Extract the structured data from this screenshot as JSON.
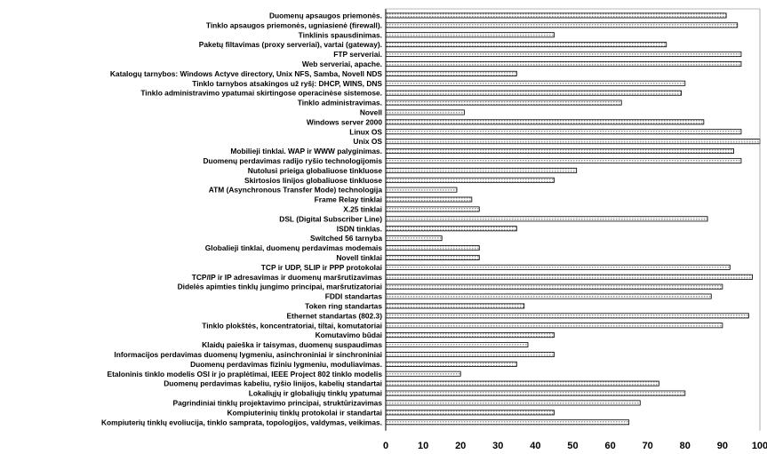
{
  "colors": {
    "bar_fill": "#d8d8d8",
    "bar_stroke": "#000000",
    "axis": "#000000",
    "text": "#000000"
  },
  "chart_data": {
    "type": "bar",
    "orientation": "horizontal",
    "title": "",
    "xlabel": "",
    "ylabel": "",
    "xlim": [
      0,
      100
    ],
    "xticks": [
      0,
      10,
      20,
      30,
      40,
      50,
      60,
      70,
      80,
      90,
      100
    ],
    "grid": false,
    "legend": "none",
    "categories": [
      "Duomenų apsaugos priemonės.",
      "Tinklo apsaugos priemonės, ugniasienė (firewall).",
      "Tinklinis spausdinimas.",
      "Paketų filtavimas (proxy serveriai), vartai (gateway).",
      "FTP serveriai.",
      "Web serveriai, apache.",
      "Katalogų tarnybos: Windows Actyve directory, Unix NFS, Samba, Novell NDS",
      "Tinklo tarnybos atsakingos už ryšį: DHCP, WINS, DNS",
      "Tinklo administravimo ypatumai skirtingose operacinėse sistemose.",
      "Tinklo administravimas.",
      "Novell",
      "Windows server 2000",
      "Linux OS",
      "Unix OS",
      "Mobilieji tinklai. WAP ir WWW palyginimas.",
      "Duomenų perdavimas radijo ryšio technologijomis",
      "Nutolusi prieiga globaliuose tinkluose",
      "Skirtosios linijos globaliuose tinkluose",
      "ATM (Asynchronous Transfer Mode) technologija",
      "Frame Relay tinklai",
      "X.25 tinklai",
      "DSL (Digital Subscriber Line)",
      "ISDN tinklas.",
      "Switched 56 tarnyba",
      "Globalieji tinklai, duomenų perdavimas modemais",
      "Novell tinklai",
      "TCP ir UDP, SLIP ir PPP protokolai",
      "TCP/IP ir IP adresavimas ir duomenų maršrutizavimas",
      "Didelės apimties tinklų jungimo principai, maršrutizatoriai",
      "FDDI standartas",
      "Token ring standartas",
      "Ethernet standartas (802.3)",
      "Tinklo plokštės, koncentratoriai, tiltai, komutatoriai",
      "Komutavimo būdai",
      "Klaidų paieška ir taisymas, duomenų suspaudimas",
      "Informacijos perdavimas duomenų lygmeniu, asinchroniniai ir sinchroniniai",
      "Duomenų perdavimas fiziniu lygmeniu, moduliavimas.",
      "Etaloninis tinklo modelis OSI ir jo praplėtimai, IEEE Project 802 tinklo modelis",
      "Duomenų perdavimas kabeliu, ryšio linijos, kabelių standartai",
      "Lokaliųjų ir globaliųjų tinklų ypatumai",
      "Pagrindiniai tinklų projektavimo principai, struktūrizavimas",
      "Kompiuterinių tinklų protokolai ir standartai",
      "Kompiuterių tinklų evoliucija, tinklo samprata, topologijos, valdymas, veikimas."
    ],
    "values": [
      91,
      94,
      45,
      75,
      95,
      95,
      35,
      80,
      79,
      63,
      21,
      85,
      95,
      100,
      93,
      95,
      51,
      45,
      19,
      23,
      25,
      86,
      35,
      15,
      25,
      25,
      92,
      98,
      90,
      87,
      37,
      97,
      90,
      45,
      38,
      45,
      35,
      20,
      73,
      80,
      68,
      45,
      65
    ]
  }
}
